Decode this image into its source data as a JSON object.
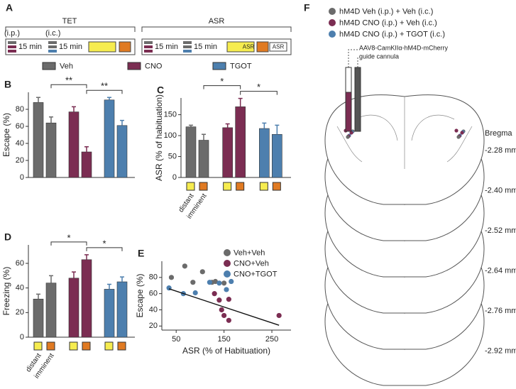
{
  "panel_a": {
    "label": "A",
    "sections": [
      "TET",
      "ASR"
    ],
    "injections": [
      "(i.p.)",
      "(i.c.)"
    ],
    "durations": [
      "15 min",
      "15 min",
      "15 min",
      "15 min"
    ],
    "stim_labels": [
      "ASR",
      "ASR"
    ],
    "legend": [
      "Veh",
      "CNO",
      "TGOT"
    ]
  },
  "chart_data": [
    {
      "type": "bar",
      "panel": "B",
      "ylabel": "Escape (%)",
      "ylim": [
        0,
        100
      ],
      "yticks": [
        0,
        20,
        40,
        60,
        80
      ],
      "series": [
        {
          "color": "#6b6b6b",
          "values": [
            88,
            64
          ],
          "errors": [
            6,
            7
          ]
        },
        {
          "color": "#7b2d52",
          "values": [
            77,
            30
          ],
          "errors": [
            6,
            6
          ]
        },
        {
          "color": "#4d7fae",
          "values": [
            91,
            61
          ],
          "errors": [
            3,
            6
          ]
        }
      ],
      "annotations": [
        "**",
        "**"
      ]
    },
    {
      "type": "bar",
      "panel": "C",
      "ylabel": "ASR (% of habituation)",
      "ylim": [
        0,
        190
      ],
      "yticks": [
        0,
        50,
        100,
        150
      ],
      "categories": [
        "distant",
        "imminent"
      ],
      "category_colors": [
        "#f6ec4f",
        "#e07a22"
      ],
      "series": [
        {
          "color": "#6b6b6b",
          "values": [
            121,
            89
          ],
          "errors": [
            4,
            14
          ]
        },
        {
          "color": "#7b2d52",
          "values": [
            119,
            169
          ],
          "errors": [
            9,
            20
          ]
        },
        {
          "color": "#4d7fae",
          "values": [
            117,
            103
          ],
          "errors": [
            13,
            22
          ]
        }
      ],
      "annotations": [
        "*",
        "*"
      ]
    },
    {
      "type": "bar",
      "panel": "D",
      "ylabel": "Freezing (%)",
      "ylim": [
        0,
        75
      ],
      "yticks": [
        0,
        20,
        40,
        60
      ],
      "categories": [
        "distant",
        "imminent"
      ],
      "category_colors": [
        "#f6ec4f",
        "#e07a22"
      ],
      "series": [
        {
          "color": "#6b6b6b",
          "values": [
            31,
            44
          ],
          "errors": [
            4,
            6
          ]
        },
        {
          "color": "#7b2d52",
          "values": [
            48,
            63
          ],
          "errors": [
            5,
            4
          ]
        },
        {
          "color": "#4d7fae",
          "values": [
            39,
            45
          ],
          "errors": [
            4,
            4
          ]
        }
      ],
      "annotations": [
        "*",
        "*"
      ]
    },
    {
      "type": "scatter",
      "panel": "E",
      "xlabel": "ASR (% of Habituation)",
      "ylabel": "Escape (%)",
      "xlim": [
        20,
        290
      ],
      "xticks": [
        50,
        150,
        250
      ],
      "ylim": [
        15,
        100
      ],
      "yticks": [
        20,
        40,
        60,
        80
      ],
      "legend": "upper right",
      "series": [
        {
          "name": "Veh+Veh",
          "color": "#6b6b6b",
          "x": [
            40,
            68,
            85,
            105,
            125,
            132,
            150
          ],
          "y": [
            80,
            94,
            74,
            87,
            74,
            75,
            73
          ]
        },
        {
          "name": "CNO+Veh",
          "color": "#7b2d52",
          "x": [
            130,
            145,
            150,
            160,
            160,
            265,
            140
          ],
          "y": [
            60,
            40,
            33,
            53,
            27,
            33,
            52
          ]
        },
        {
          "name": "CNO+TGOT",
          "color": "#4d7fae",
          "x": [
            35,
            65,
            90,
            120,
            140,
            155,
            165
          ],
          "y": [
            67,
            60,
            61,
            74,
            73,
            65,
            75
          ]
        }
      ],
      "fit": {
        "x": [
          35,
          265
        ],
        "y": [
          66,
          21
        ]
      }
    }
  ],
  "panel_f": {
    "label": "F",
    "legend": [
      "hM4D Veh (i.p.) + Veh (i.c.)",
      "hM4D CNO (i.p.) + Veh (i.c.)",
      "hM4D CNO (i.p.) + TGOT (i.c.)"
    ],
    "virus": "AAV8-CamKIIα-hM4D-mCherry",
    "cannula": "guide cannula",
    "bregma": "Bregma",
    "levels": [
      "-2.28 mm",
      "-2.40 mm",
      "-2.52 mm",
      "-2.64 mm",
      "-2.76 mm",
      "-2.92 mm"
    ]
  }
}
